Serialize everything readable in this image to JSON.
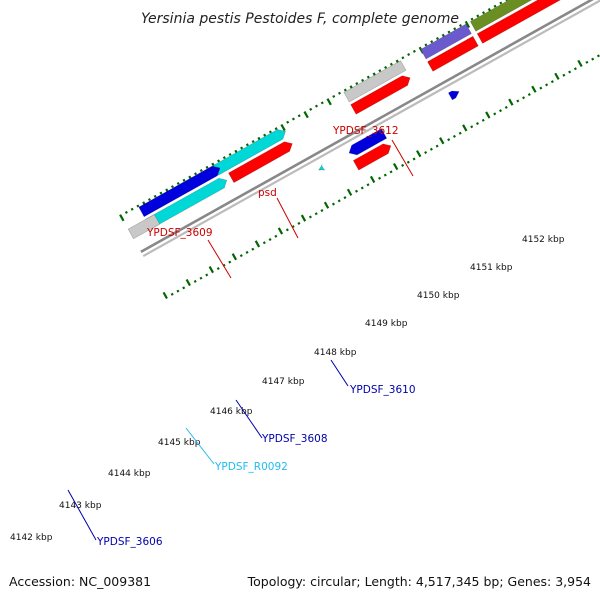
{
  "title": "Yersinia pestis Pestoides F, complete genome",
  "footer": {
    "accession": "Accession: NC_009381",
    "topology": "Topology: circular; Length: 4,517,345 bp; Genes: 3,954"
  },
  "colors": {
    "cds_forward": "#ff0000",
    "gene_blue": "#0000dd",
    "gene_cyan": "#00d8d8",
    "gene_gray": "#c8c8c8",
    "gene_olive": "#6b8e23",
    "gene_purple": "#6a5acd",
    "gene_pink": "#f08080",
    "label_red": "#cc0000",
    "label_blue": "#0000aa",
    "label_cyan": "#22bbee",
    "tick_green": "#006600",
    "backbone": "#888888"
  },
  "tick_labels": [
    "4142 kbp",
    "4143 kbp",
    "4144 kbp",
    "4145 kbp",
    "4146 kbp",
    "4147 kbp",
    "4148 kbp",
    "4149 kbp",
    "4150 kbp",
    "4151 kbp",
    "4152 kbp"
  ],
  "gene_labels": {
    "ypdsf_3612": "YPDSF_3612",
    "psd": "psd",
    "ypdsf_3609": "YPDSF_3609",
    "ypdsf_3610": "YPDSF_3610",
    "ypdsf_3608": "YPDSF_3608",
    "ypdsf_r0092": "YPDSF_R0092",
    "ypdsf_3606": "YPDSF_3606"
  }
}
